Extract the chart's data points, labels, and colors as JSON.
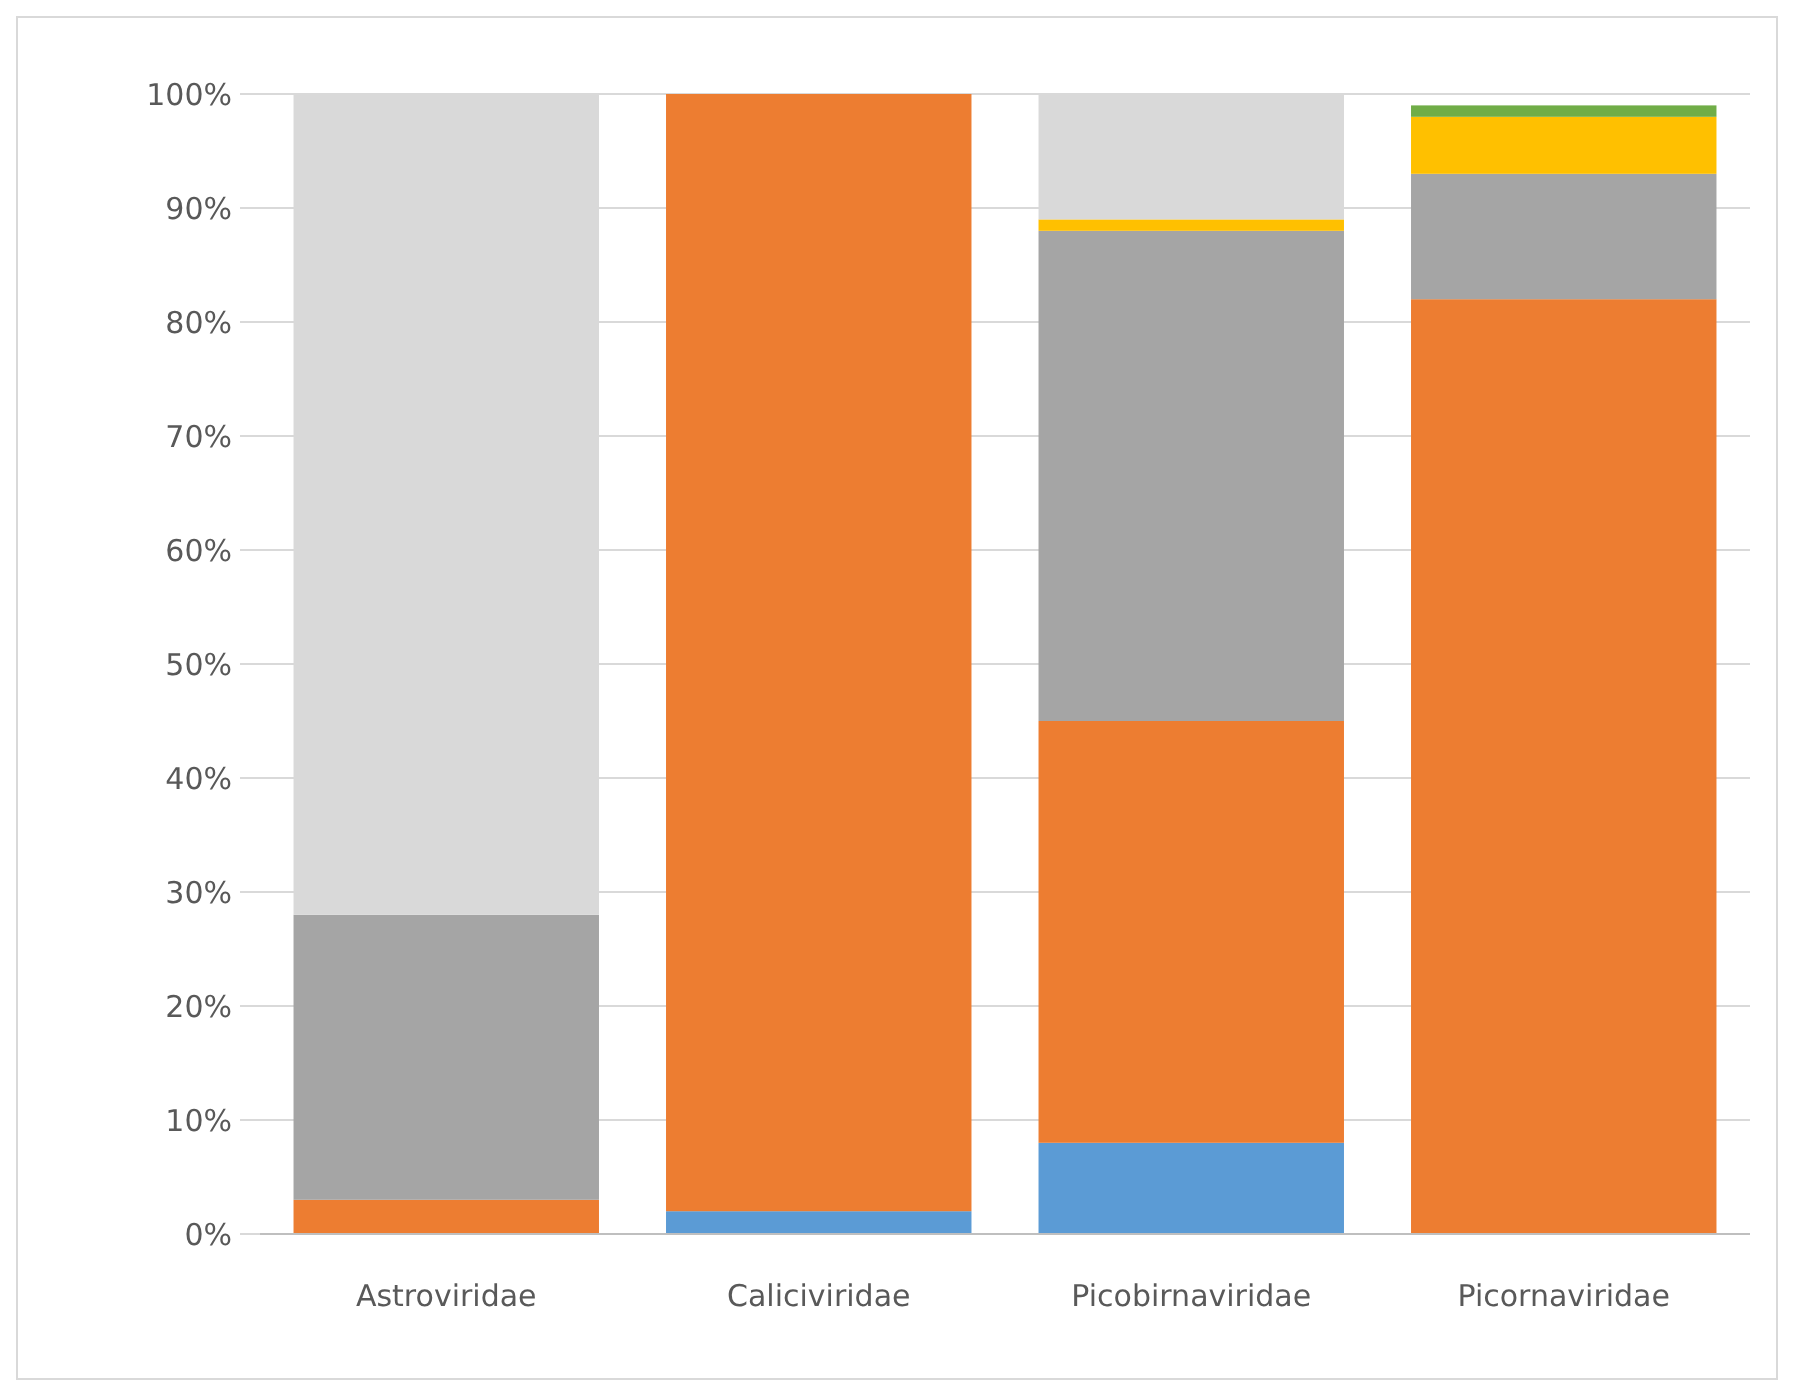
{
  "chart_data": {
    "type": "bar",
    "stacked": true,
    "categories": [
      "Astroviridae",
      "Caliciviridae",
      "Picobirnaviridae",
      "Picornaviridae"
    ],
    "series": [
      {
        "color": "#5b9bd5",
        "values": [
          0,
          2,
          8,
          0
        ]
      },
      {
        "color": "#ed7d31",
        "values": [
          3,
          98,
          37,
          82
        ]
      },
      {
        "color": "#a5a5a5",
        "values": [
          25,
          0,
          43,
          11
        ]
      },
      {
        "color": "#ffc000",
        "values": [
          0,
          0,
          1,
          5
        ]
      },
      {
        "color": "#70ad47",
        "values": [
          0,
          0,
          0,
          1
        ]
      },
      {
        "color": "#d9d9d9",
        "values": [
          72,
          0,
          11,
          0
        ]
      }
    ],
    "ylim": [
      0,
      100
    ],
    "yticks": [
      {
        "value": 0,
        "label": "0%"
      },
      {
        "value": 10,
        "label": "10%"
      },
      {
        "value": 20,
        "label": "20%"
      },
      {
        "value": 30,
        "label": "30%"
      },
      {
        "value": 40,
        "label": "40%"
      },
      {
        "value": 50,
        "label": "50%"
      },
      {
        "value": 60,
        "label": "60%"
      },
      {
        "value": 70,
        "label": "70%"
      },
      {
        "value": 80,
        "label": "80%"
      },
      {
        "value": 90,
        "label": "90%"
      },
      {
        "value": 100,
        "label": "100%"
      }
    ],
    "grid": "y"
  }
}
